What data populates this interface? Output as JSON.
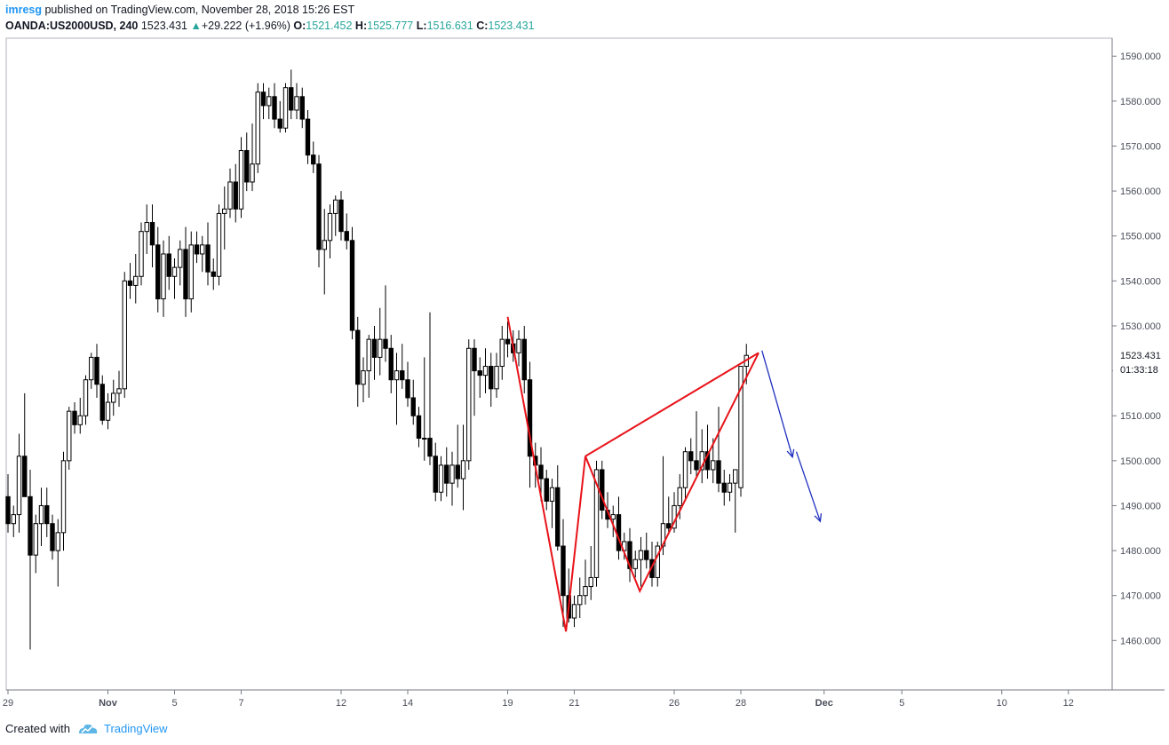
{
  "header": {
    "user": "imresg",
    "published": "published on TradingView.com, November 28, 2018 15:26 EST",
    "symbol": "OANDA:US2000USD, 240",
    "last": "1523.431",
    "change": "+29.222 (+1.96%)",
    "open_label": "O:",
    "open": "1521.452",
    "high_label": "H:",
    "high": "1525.777",
    "low_label": "L:",
    "low": "1516.631",
    "close_label": "C:",
    "close": "1523.431"
  },
  "price_label": {
    "price": "1523.431",
    "countdown": "01:33:18"
  },
  "footer": {
    "created_with": "Created with",
    "brand": "TradingView"
  },
  "colors": {
    "pattern": "#e8131a",
    "arrow": "#1f2fbf",
    "candle": "#000000",
    "axis": "#787b86"
  },
  "chart_data": {
    "type": "candlestick",
    "title": "",
    "ylim": [
      1449,
      1594
    ],
    "y_ticks": [
      1460,
      1470,
      1480,
      1490,
      1500,
      1510,
      1520,
      1530,
      1540,
      1550,
      1560,
      1570,
      1580,
      1590
    ],
    "x_ticks": [
      {
        "t": 0,
        "label": "29"
      },
      {
        "t": 18,
        "label": "Nov"
      },
      {
        "t": 30,
        "label": "5"
      },
      {
        "t": 42,
        "label": "7"
      },
      {
        "t": 60,
        "label": "12"
      },
      {
        "t": 72,
        "label": "14"
      },
      {
        "t": 90,
        "label": "19"
      },
      {
        "t": 102,
        "label": "21"
      },
      {
        "t": 120,
        "label": "26"
      },
      {
        "t": 132,
        "label": "28"
      },
      {
        "t": 147,
        "label": "Dec"
      },
      {
        "t": 161,
        "label": "5"
      },
      {
        "t": 179,
        "label": "10"
      },
      {
        "t": 191,
        "label": "12"
      }
    ],
    "candles": [
      {
        "o": 1492,
        "h": 1497,
        "l": 1484,
        "c": 1486
      },
      {
        "o": 1486,
        "h": 1490,
        "l": 1483,
        "c": 1488
      },
      {
        "o": 1488,
        "h": 1506,
        "l": 1484,
        "c": 1501
      },
      {
        "o": 1501,
        "h": 1515,
        "l": 1493,
        "c": 1492
      },
      {
        "o": 1492,
        "h": 1498,
        "l": 1458,
        "c": 1479
      },
      {
        "o": 1479,
        "h": 1488,
        "l": 1475,
        "c": 1486
      },
      {
        "o": 1486,
        "h": 1494,
        "l": 1481,
        "c": 1490
      },
      {
        "o": 1490,
        "h": 1494,
        "l": 1483,
        "c": 1486
      },
      {
        "o": 1486,
        "h": 1488,
        "l": 1478,
        "c": 1480
      },
      {
        "o": 1480,
        "h": 1487,
        "l": 1472,
        "c": 1484
      },
      {
        "o": 1484,
        "h": 1502,
        "l": 1480,
        "c": 1500
      },
      {
        "o": 1500,
        "h": 1512,
        "l": 1498,
        "c": 1511
      },
      {
        "o": 1511,
        "h": 1513,
        "l": 1506,
        "c": 1508
      },
      {
        "o": 1508,
        "h": 1514,
        "l": 1506,
        "c": 1510
      },
      {
        "o": 1510,
        "h": 1519,
        "l": 1508,
        "c": 1518
      },
      {
        "o": 1518,
        "h": 1524,
        "l": 1516,
        "c": 1523
      },
      {
        "o": 1523,
        "h": 1526,
        "l": 1514,
        "c": 1517
      },
      {
        "o": 1517,
        "h": 1519,
        "l": 1508,
        "c": 1509
      },
      {
        "o": 1509,
        "h": 1515,
        "l": 1507,
        "c": 1513
      },
      {
        "o": 1513,
        "h": 1518,
        "l": 1510,
        "c": 1515
      },
      {
        "o": 1515,
        "h": 1520,
        "l": 1512,
        "c": 1516
      },
      {
        "o": 1516,
        "h": 1542,
        "l": 1514,
        "c": 1540
      },
      {
        "o": 1540,
        "h": 1544,
        "l": 1536,
        "c": 1539
      },
      {
        "o": 1539,
        "h": 1546,
        "l": 1535,
        "c": 1541
      },
      {
        "o": 1541,
        "h": 1553,
        "l": 1539,
        "c": 1551
      },
      {
        "o": 1551,
        "h": 1557,
        "l": 1546,
        "c": 1553
      },
      {
        "o": 1553,
        "h": 1557,
        "l": 1543,
        "c": 1548
      },
      {
        "o": 1548,
        "h": 1552,
        "l": 1533,
        "c": 1536
      },
      {
        "o": 1536,
        "h": 1549,
        "l": 1532,
        "c": 1546
      },
      {
        "o": 1546,
        "h": 1550,
        "l": 1538,
        "c": 1541
      },
      {
        "o": 1541,
        "h": 1545,
        "l": 1536,
        "c": 1543
      },
      {
        "o": 1543,
        "h": 1549,
        "l": 1539,
        "c": 1547
      },
      {
        "o": 1547,
        "h": 1552,
        "l": 1532,
        "c": 1536
      },
      {
        "o": 1536,
        "h": 1551,
        "l": 1533,
        "c": 1548
      },
      {
        "o": 1548,
        "h": 1551,
        "l": 1544,
        "c": 1546
      },
      {
        "o": 1546,
        "h": 1550,
        "l": 1542,
        "c": 1548
      },
      {
        "o": 1548,
        "h": 1553,
        "l": 1539,
        "c": 1542
      },
      {
        "o": 1542,
        "h": 1545,
        "l": 1538,
        "c": 1541
      },
      {
        "o": 1541,
        "h": 1557,
        "l": 1539,
        "c": 1555
      },
      {
        "o": 1555,
        "h": 1561,
        "l": 1547,
        "c": 1556
      },
      {
        "o": 1556,
        "h": 1565,
        "l": 1554,
        "c": 1562
      },
      {
        "o": 1562,
        "h": 1566,
        "l": 1553,
        "c": 1556
      },
      {
        "o": 1556,
        "h": 1572,
        "l": 1554,
        "c": 1569
      },
      {
        "o": 1569,
        "h": 1573,
        "l": 1560,
        "c": 1562
      },
      {
        "o": 1562,
        "h": 1575,
        "l": 1560,
        "c": 1566
      },
      {
        "o": 1566,
        "h": 1584,
        "l": 1564,
        "c": 1582
      },
      {
        "o": 1582,
        "h": 1584,
        "l": 1576,
        "c": 1579
      },
      {
        "o": 1579,
        "h": 1583,
        "l": 1576,
        "c": 1581
      },
      {
        "o": 1581,
        "h": 1584,
        "l": 1574,
        "c": 1576
      },
      {
        "o": 1576,
        "h": 1580,
        "l": 1573,
        "c": 1574
      },
      {
        "o": 1574,
        "h": 1584,
        "l": 1573,
        "c": 1583
      },
      {
        "o": 1583,
        "h": 1587,
        "l": 1576,
        "c": 1578
      },
      {
        "o": 1578,
        "h": 1584,
        "l": 1576,
        "c": 1581
      },
      {
        "o": 1581,
        "h": 1583,
        "l": 1574,
        "c": 1576
      },
      {
        "o": 1576,
        "h": 1578,
        "l": 1566,
        "c": 1568
      },
      {
        "o": 1568,
        "h": 1571,
        "l": 1564,
        "c": 1566
      },
      {
        "o": 1566,
        "h": 1568,
        "l": 1543,
        "c": 1547
      },
      {
        "o": 1547,
        "h": 1556,
        "l": 1537,
        "c": 1549
      },
      {
        "o": 1549,
        "h": 1557,
        "l": 1545,
        "c": 1555
      },
      {
        "o": 1555,
        "h": 1559,
        "l": 1550,
        "c": 1558
      },
      {
        "o": 1558,
        "h": 1560,
        "l": 1549,
        "c": 1551
      },
      {
        "o": 1551,
        "h": 1555,
        "l": 1547,
        "c": 1549
      },
      {
        "o": 1549,
        "h": 1552,
        "l": 1527,
        "c": 1529
      },
      {
        "o": 1529,
        "h": 1532,
        "l": 1512,
        "c": 1517
      },
      {
        "o": 1517,
        "h": 1523,
        "l": 1513,
        "c": 1520
      },
      {
        "o": 1520,
        "h": 1528,
        "l": 1514,
        "c": 1527
      },
      {
        "o": 1527,
        "h": 1530,
        "l": 1518,
        "c": 1523
      },
      {
        "o": 1523,
        "h": 1534,
        "l": 1519,
        "c": 1527
      },
      {
        "o": 1527,
        "h": 1539,
        "l": 1522,
        "c": 1525
      },
      {
        "o": 1525,
        "h": 1528,
        "l": 1515,
        "c": 1518
      },
      {
        "o": 1518,
        "h": 1524,
        "l": 1508,
        "c": 1520
      },
      {
        "o": 1520,
        "h": 1526,
        "l": 1516,
        "c": 1518
      },
      {
        "o": 1518,
        "h": 1522,
        "l": 1512,
        "c": 1514
      },
      {
        "o": 1514,
        "h": 1518,
        "l": 1508,
        "c": 1510
      },
      {
        "o": 1510,
        "h": 1512,
        "l": 1503,
        "c": 1505
      },
      {
        "o": 1505,
        "h": 1523,
        "l": 1500,
        "c": 1505
      },
      {
        "o": 1505,
        "h": 1533,
        "l": 1499,
        "c": 1501
      },
      {
        "o": 1501,
        "h": 1504,
        "l": 1491,
        "c": 1493
      },
      {
        "o": 1493,
        "h": 1501,
        "l": 1491,
        "c": 1499
      },
      {
        "o": 1499,
        "h": 1503,
        "l": 1492,
        "c": 1495
      },
      {
        "o": 1495,
        "h": 1502,
        "l": 1490,
        "c": 1499
      },
      {
        "o": 1499,
        "h": 1508,
        "l": 1494,
        "c": 1496
      },
      {
        "o": 1496,
        "h": 1508,
        "l": 1489,
        "c": 1500
      },
      {
        "o": 1500,
        "h": 1527,
        "l": 1498,
        "c": 1525
      },
      {
        "o": 1525,
        "h": 1527,
        "l": 1510,
        "c": 1520
      },
      {
        "o": 1520,
        "h": 1523,
        "l": 1514,
        "c": 1519
      },
      {
        "o": 1519,
        "h": 1525,
        "l": 1515,
        "c": 1521
      },
      {
        "o": 1521,
        "h": 1524,
        "l": 1512,
        "c": 1516
      },
      {
        "o": 1516,
        "h": 1524,
        "l": 1514,
        "c": 1521
      },
      {
        "o": 1521,
        "h": 1530,
        "l": 1518,
        "c": 1527
      },
      {
        "o": 1527,
        "h": 1531,
        "l": 1523,
        "c": 1526
      },
      {
        "o": 1526,
        "h": 1529,
        "l": 1522,
        "c": 1524
      },
      {
        "o": 1524,
        "h": 1529,
        "l": 1521,
        "c": 1527
      },
      {
        "o": 1527,
        "h": 1530,
        "l": 1515,
        "c": 1518
      },
      {
        "o": 1518,
        "h": 1522,
        "l": 1494,
        "c": 1501
      },
      {
        "o": 1501,
        "h": 1504,
        "l": 1494,
        "c": 1499
      },
      {
        "o": 1499,
        "h": 1503,
        "l": 1491,
        "c": 1496
      },
      {
        "o": 1496,
        "h": 1498,
        "l": 1489,
        "c": 1491
      },
      {
        "o": 1491,
        "h": 1496,
        "l": 1485,
        "c": 1494
      },
      {
        "o": 1494,
        "h": 1499,
        "l": 1480,
        "c": 1481
      },
      {
        "o": 1481,
        "h": 1487,
        "l": 1463,
        "c": 1470
      },
      {
        "o": 1470,
        "h": 1476,
        "l": 1464,
        "c": 1465
      },
      {
        "o": 1465,
        "h": 1470,
        "l": 1463,
        "c": 1468
      },
      {
        "o": 1468,
        "h": 1474,
        "l": 1465,
        "c": 1470
      },
      {
        "o": 1470,
        "h": 1478,
        "l": 1468,
        "c": 1472
      },
      {
        "o": 1472,
        "h": 1481,
        "l": 1469,
        "c": 1474
      },
      {
        "o": 1474,
        "h": 1500,
        "l": 1472,
        "c": 1498
      },
      {
        "o": 1498,
        "h": 1500,
        "l": 1487,
        "c": 1489
      },
      {
        "o": 1489,
        "h": 1493,
        "l": 1485,
        "c": 1487
      },
      {
        "o": 1487,
        "h": 1490,
        "l": 1483,
        "c": 1488
      },
      {
        "o": 1488,
        "h": 1492,
        "l": 1478,
        "c": 1480
      },
      {
        "o": 1480,
        "h": 1484,
        "l": 1478,
        "c": 1482
      },
      {
        "o": 1482,
        "h": 1485,
        "l": 1473,
        "c": 1476
      },
      {
        "o": 1476,
        "h": 1480,
        "l": 1474,
        "c": 1478
      },
      {
        "o": 1478,
        "h": 1483,
        "l": 1472,
        "c": 1480
      },
      {
        "o": 1480,
        "h": 1484,
        "l": 1476,
        "c": 1478
      },
      {
        "o": 1478,
        "h": 1482,
        "l": 1472,
        "c": 1474
      },
      {
        "o": 1474,
        "h": 1482,
        "l": 1472,
        "c": 1481
      },
      {
        "o": 1481,
        "h": 1501,
        "l": 1479,
        "c": 1486
      },
      {
        "o": 1486,
        "h": 1492,
        "l": 1484,
        "c": 1485
      },
      {
        "o": 1485,
        "h": 1493,
        "l": 1484,
        "c": 1490
      },
      {
        "o": 1490,
        "h": 1497,
        "l": 1487,
        "c": 1494
      },
      {
        "o": 1494,
        "h": 1503,
        "l": 1491,
        "c": 1502
      },
      {
        "o": 1502,
        "h": 1505,
        "l": 1497,
        "c": 1500
      },
      {
        "o": 1500,
        "h": 1511,
        "l": 1496,
        "c": 1498
      },
      {
        "o": 1498,
        "h": 1507,
        "l": 1495,
        "c": 1502
      },
      {
        "o": 1502,
        "h": 1508,
        "l": 1496,
        "c": 1498
      },
      {
        "o": 1498,
        "h": 1505,
        "l": 1495,
        "c": 1500
      },
      {
        "o": 1500,
        "h": 1512,
        "l": 1493,
        "c": 1495
      },
      {
        "o": 1495,
        "h": 1498,
        "l": 1490,
        "c": 1493
      },
      {
        "o": 1493,
        "h": 1497,
        "l": 1491,
        "c": 1495
      },
      {
        "o": 1495,
        "h": 1498,
        "l": 1484,
        "c": 1498
      },
      {
        "o": 1494,
        "h": 1521,
        "l": 1492,
        "c": 1521
      },
      {
        "o": 1521,
        "h": 1526,
        "l": 1517,
        "c": 1523.431
      }
    ],
    "pattern_points": [
      {
        "t": 90.0,
        "y": 1532
      },
      {
        "t": 100.5,
        "y": 1462
      },
      {
        "t": 104.0,
        "y": 1501
      },
      {
        "t": 113.8,
        "y": 1471
      },
      {
        "t": 135.2,
        "y": 1524
      }
    ],
    "pattern_extra_segment": [
      {
        "t": 104.0,
        "y": 1501
      },
      {
        "t": 135.2,
        "y": 1524
      }
    ],
    "forecast_arrows": [
      [
        {
          "t": 135.8,
          "y": 1524.5
        },
        {
          "t": 141.3,
          "y": 1500.8
        }
      ],
      [
        {
          "t": 142.0,
          "y": 1502.0
        },
        {
          "t": 146.3,
          "y": 1486.5
        }
      ]
    ]
  }
}
